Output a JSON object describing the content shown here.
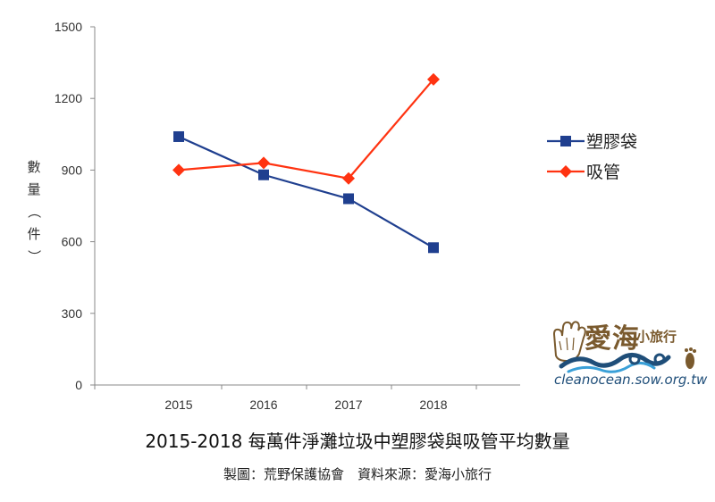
{
  "chart_data": {
    "type": "line",
    "title": "2015-2018  每萬件淨灘垃圾中塑膠袋與吸管平均數量",
    "xlabel": "",
    "ylabel": "數量（件）",
    "categories": [
      "2015",
      "2016",
      "2017",
      "2018"
    ],
    "ylim": [
      0,
      1500
    ],
    "yticks": [
      "0",
      "300",
      "600",
      "900",
      "1200",
      "1500"
    ],
    "grid": false,
    "legend_position": "right",
    "series": [
      {
        "name": "塑膠袋",
        "color": "#1f3f8f",
        "marker": "square",
        "values": [
          1040,
          880,
          780,
          575
        ]
      },
      {
        "name": "吸管",
        "color": "#ff3311",
        "marker": "diamond",
        "values": [
          900,
          930,
          865,
          1280
        ]
      }
    ]
  },
  "credit": "製圖：荒野保護協會　資料來源：愛海小旅行",
  "logo": {
    "title": "愛海",
    "subtitle": "小旅行",
    "url": "cleanocean.sow.org.tw",
    "colors": {
      "brown": "#7a5a2e",
      "wave_dark": "#1f4e79",
      "wave_light": "#3aa0d8"
    }
  }
}
